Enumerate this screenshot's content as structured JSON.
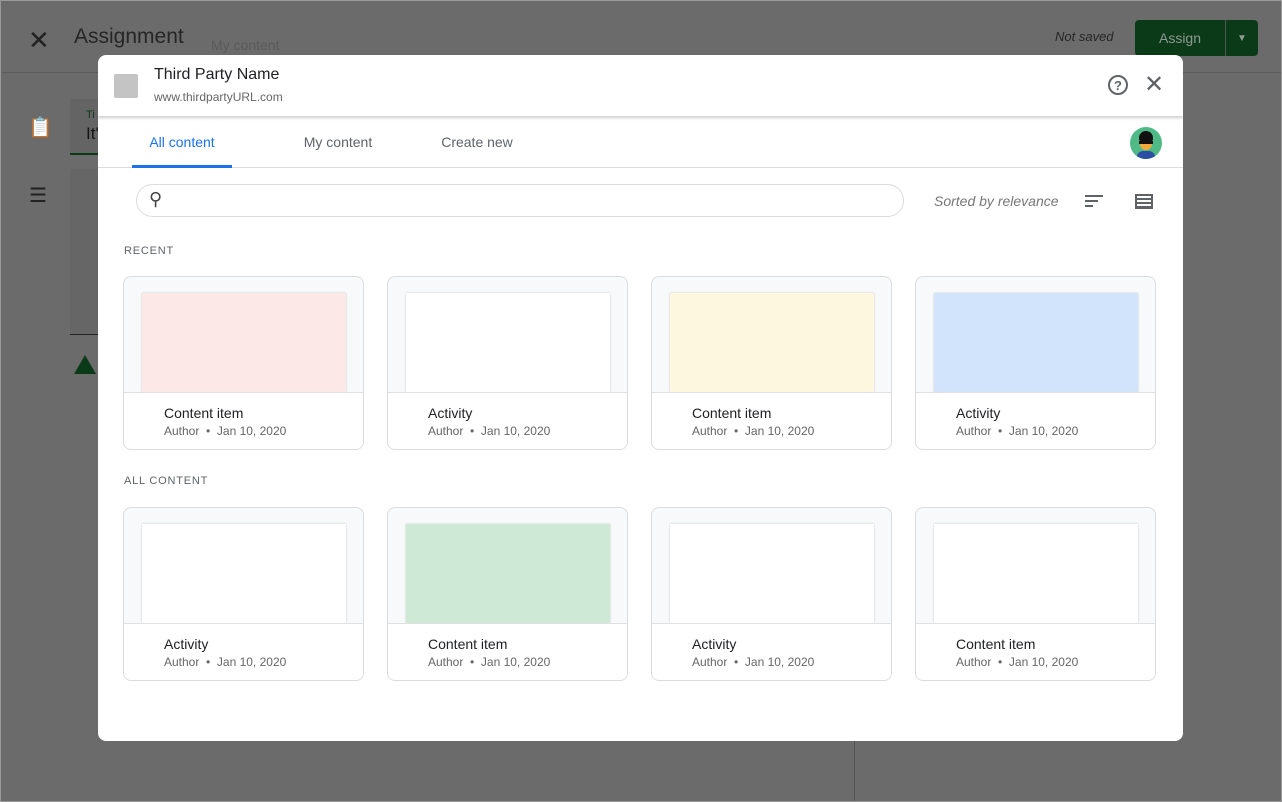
{
  "background": {
    "close_icon": "close-icon",
    "title": "Assignment",
    "ghost_text": "My content",
    "status": "Not saved",
    "assign_label": "Assign",
    "field_label": "Ti",
    "field_value": "It'",
    "accent": "#1e7e34"
  },
  "modal": {
    "provider_name": "Third Party Name",
    "provider_url": "www.thirdpartyURL.com",
    "tabs": [
      {
        "label": "All content",
        "active": true
      },
      {
        "label": "My content"
      },
      {
        "label": "Create new"
      }
    ],
    "search": {
      "placeholder": "",
      "value": ""
    },
    "sort_label": "Sorted by relevance",
    "accent": "#1a73e8",
    "sections": [
      {
        "title": "RECENT",
        "items": [
          {
            "title": "Content item",
            "author": "Author",
            "date": "Jan 10, 2020",
            "color": "#fce8e6"
          },
          {
            "title": "Activity",
            "author": "Author",
            "date": "Jan 10, 2020",
            "color": "#ffffff"
          },
          {
            "title": "Content item",
            "author": "Author",
            "date": "Jan 10, 2020",
            "color": "#fef7e0"
          },
          {
            "title": "Activity",
            "author": "Author",
            "date": "Jan 10, 2020",
            "color": "#d2e3fc"
          }
        ]
      },
      {
        "title": "ALL CONTENT",
        "items": [
          {
            "title": "Activity",
            "author": "Author",
            "date": "Jan 10, 2020",
            "color": "#ffffff"
          },
          {
            "title": "Content item",
            "author": "Author",
            "date": "Jan 10, 2020",
            "color": "#ceead6"
          },
          {
            "title": "Activity",
            "author": "Author",
            "date": "Jan 10, 2020",
            "color": "#ffffff"
          },
          {
            "title": "Content item",
            "author": "Author",
            "date": "Jan 10, 2020",
            "color": "#ffffff"
          }
        ]
      }
    ]
  }
}
